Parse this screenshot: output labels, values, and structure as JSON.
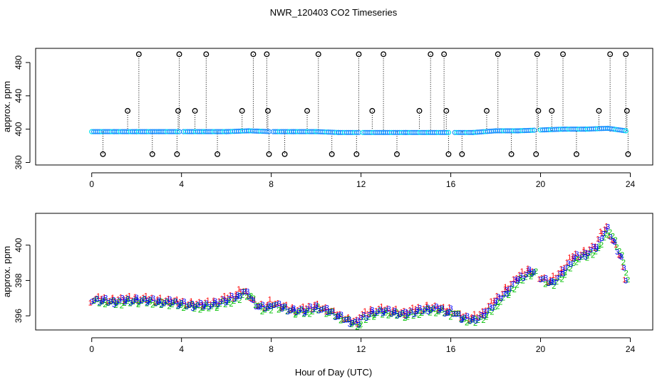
{
  "figure": {
    "title": "NWR_120403  CO2 Timeseries",
    "xlabel": "Hour of Day (UTC)"
  },
  "colors": {
    "flag": "#000000",
    "base": "#1e90ff",
    "s1": "#ff0000",
    "s2": "#00c000",
    "s3": "#0000ff",
    "s4": "#00e5ee",
    "axis": "#000000"
  },
  "chart_data": [
    {
      "type": "scatter",
      "panel": "top",
      "ylabel": "approx. ppm",
      "xlim": [
        -2.5,
        25
      ],
      "ylim": [
        357,
        497
      ],
      "xticks": [
        "0",
        "4",
        "8",
        "12",
        "16",
        "20",
        "24"
      ],
      "yticks": [
        "360",
        "400",
        "440",
        "480"
      ],
      "baseline": {
        "x": [
          0,
          1,
          2,
          3,
          4,
          5,
          6,
          7,
          8,
          9,
          10,
          11,
          12,
          13,
          14,
          15,
          16,
          17,
          18,
          19,
          20,
          21,
          22,
          23,
          23.8
        ],
        "y": [
          397,
          397,
          397,
          397,
          397,
          397,
          397,
          398,
          397,
          397,
          397,
          396,
          396,
          396,
          396,
          396,
          396,
          396,
          398,
          398,
          399,
          400,
          400,
          401,
          398
        ]
      },
      "flagged_points": {
        "x": [
          0.5,
          1.6,
          2.1,
          2.7,
          3.8,
          3.85,
          3.9,
          4.6,
          5.1,
          5.6,
          6.7,
          7.2,
          7.8,
          7.85,
          7.9,
          8.6,
          9.6,
          10.1,
          10.7,
          11.8,
          11.9,
          12.5,
          13.0,
          13.6,
          14.6,
          15.1,
          15.7,
          15.8,
          15.9,
          16.5,
          17.6,
          18.1,
          18.7,
          19.8,
          19.85,
          19.9,
          20.5,
          21.0,
          21.6,
          22.6,
          23.1,
          23.8,
          23.85,
          23.9
        ],
        "y": [
          370,
          422,
          490,
          370,
          370,
          422,
          490,
          422,
          490,
          370,
          422,
          490,
          490,
          422,
          370,
          370,
          422,
          490,
          370,
          370,
          490,
          422,
          490,
          370,
          422,
          490,
          490,
          422,
          370,
          370,
          422,
          490,
          370,
          370,
          490,
          422,
          422,
          490,
          370,
          422,
          490,
          490,
          422,
          370
        ]
      }
    },
    {
      "type": "line",
      "panel": "bottom",
      "ylabel": "approx. ppm",
      "xlim": [
        -2.5,
        25
      ],
      "ylim": [
        395.2,
        401.8
      ],
      "xticks": [
        "0",
        "4",
        "8",
        "12",
        "16",
        "20",
        "24"
      ],
      "yticks": [
        "396",
        "398",
        "400"
      ],
      "x": [
        0,
        0.5,
        1,
        1.5,
        2,
        2.5,
        3,
        3.5,
        3.9,
        4,
        4.5,
        5,
        5.5,
        6,
        6.5,
        6.7,
        7,
        7.2,
        7.5,
        7.9,
        8,
        8.5,
        9,
        9.5,
        10,
        10.5,
        11,
        11.5,
        11.9,
        12,
        12.5,
        13,
        13.5,
        14,
        14.5,
        15,
        15.5,
        15.9,
        16,
        16.5,
        17,
        17.5,
        18,
        18.5,
        19,
        19.5,
        19.7,
        20,
        20.5,
        21,
        21.5,
        22,
        22.5,
        22.8,
        23,
        23.3,
        23.6,
        23.8
      ],
      "series": [
        {
          "name": "1",
          "values": [
            396.9,
            397.0,
            396.9,
            397.0,
            397.0,
            397.0,
            396.9,
            396.9,
            396.8,
            396.8,
            396.7,
            396.7,
            396.8,
            397.0,
            397.2,
            397.5,
            397.3,
            396.9,
            396.6,
            396.6,
            396.8,
            396.6,
            396.4,
            396.4,
            396.6,
            396.4,
            396.1,
            395.8,
            395.7,
            396.0,
            396.3,
            396.4,
            396.3,
            396.2,
            396.4,
            396.5,
            396.5,
            396.3,
            396.4,
            396.0,
            395.9,
            396.2,
            396.9,
            397.5,
            398.2,
            398.6,
            398.6,
            398.2,
            398.0,
            398.6,
            399.4,
            399.6,
            400.0,
            400.8,
            401.0,
            400.2,
            399.4,
            398.2
          ]
        },
        {
          "name": "2",
          "values": [
            396.8,
            396.8,
            396.7,
            396.8,
            396.8,
            396.8,
            396.7,
            396.7,
            396.6,
            396.6,
            396.5,
            396.5,
            396.6,
            396.8,
            397.0,
            397.3,
            397.1,
            396.7,
            396.4,
            396.4,
            396.6,
            396.4,
            396.2,
            396.2,
            396.4,
            396.2,
            395.9,
            395.6,
            395.5,
            395.8,
            396.1,
            396.2,
            396.1,
            396.0,
            396.2,
            396.3,
            396.3,
            396.1,
            396.2,
            395.8,
            395.7,
            396.0,
            396.7,
            397.3,
            398.0,
            398.4,
            398.4,
            398.0,
            397.8,
            398.4,
            399.2,
            399.4,
            399.8,
            400.6,
            400.8,
            400.0,
            399.2,
            398.0
          ]
        },
        {
          "name": "3",
          "values": [
            396.9,
            396.9,
            396.8,
            396.9,
            396.9,
            396.9,
            396.8,
            396.8,
            396.7,
            396.7,
            396.6,
            396.6,
            396.7,
            396.9,
            397.1,
            397.4,
            397.2,
            396.8,
            396.5,
            396.5,
            396.7,
            396.5,
            396.3,
            396.3,
            396.5,
            396.3,
            396.0,
            395.7,
            395.6,
            395.9,
            396.2,
            396.3,
            396.2,
            396.1,
            396.3,
            396.4,
            396.4,
            396.2,
            396.3,
            395.9,
            395.8,
            396.1,
            396.8,
            397.4,
            398.1,
            398.5,
            398.5,
            398.1,
            397.9,
            398.5,
            399.3,
            399.5,
            399.9,
            400.7,
            400.9,
            400.1,
            399.3,
            398.1
          ]
        }
      ]
    }
  ]
}
